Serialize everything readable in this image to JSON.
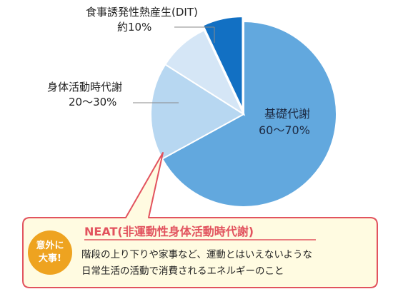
{
  "chart_data": {
    "type": "pie",
    "categories": [
      "基礎代謝",
      "身体活動時代謝",
      "食事誘発性熱産生(DIT)",
      "NEAT"
    ],
    "values": [
      67,
      17,
      9,
      7
    ],
    "labels": [
      {
        "name": "基礎代謝",
        "range": "60〜70%"
      },
      {
        "name": "身体活動時代謝",
        "range": "20〜30%"
      },
      {
        "name": "食事誘発性熱産生(DIT)",
        "range": "約10%"
      }
    ],
    "colors": [
      "#62a8de",
      "#b7d7f1",
      "#d5e6f6",
      "#1270c3"
    ],
    "exploded_slice": "NEAT"
  },
  "callout": {
    "badge_line1": "意外に",
    "badge_line2": "大事!",
    "title": "NEAT(非運動性身体活動時代謝)",
    "desc_line1": "階段の上り下りや家事など、運動とはいえないような",
    "desc_line2": "日常生活の活動で消費されるエネルギーのこと",
    "border_color": "#e2535e",
    "fill_color": "#fffbe1",
    "badge_color": "#eea320"
  }
}
